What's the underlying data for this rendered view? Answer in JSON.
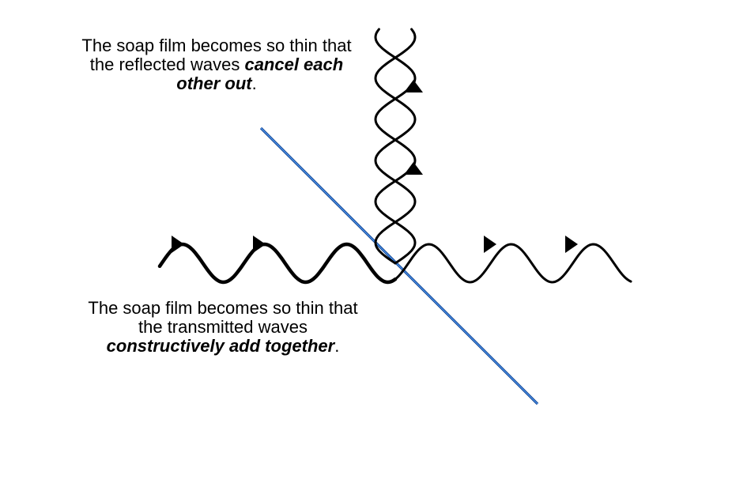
{
  "captions": {
    "reflected": {
      "line1": "The soap film becomes so thin that",
      "line2_plain": "the reflected waves ",
      "line2_emph": "cancel each",
      "line3_emph": "other out",
      "line3_end": "."
    },
    "transmitted": {
      "line1": "The soap film becomes so thin that",
      "line2": "the transmitted waves",
      "line3_emph": "constructively add together",
      "line3_end": "."
    }
  },
  "colors": {
    "wave": "#000000",
    "film": "#1a5fb4",
    "background": "#ffffff"
  }
}
